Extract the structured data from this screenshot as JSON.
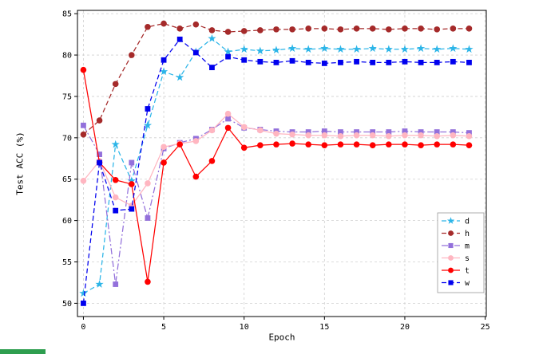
{
  "chart_data": {
    "type": "line",
    "title": "",
    "xlabel": "Epoch",
    "ylabel": "Test ACC (%)",
    "xlim": [
      -0.37,
      25.07
    ],
    "ylim": [
      48.4,
      85.4
    ],
    "xticks": [
      0,
      5,
      10,
      15,
      20,
      25
    ],
    "yticks": [
      50,
      55,
      60,
      65,
      70,
      75,
      80,
      85
    ],
    "grid": true,
    "legend_position": "lower right",
    "x": [
      0,
      1,
      2,
      3,
      4,
      5,
      6,
      7,
      8,
      9,
      10,
      11,
      12,
      13,
      14,
      15,
      16,
      17,
      18,
      19,
      20,
      21,
      22,
      23,
      24
    ],
    "series": [
      {
        "name": "d",
        "color": "#2cb5e8",
        "line": "dashed",
        "marker": "star",
        "values": [
          51.2,
          52.3,
          69.2,
          64.8,
          71.5,
          78.0,
          77.3,
          80.4,
          82.0,
          80.4,
          80.7,
          80.5,
          80.6,
          80.8,
          80.7,
          80.8,
          80.7,
          80.7,
          80.8,
          80.7,
          80.7,
          80.8,
          80.7,
          80.8,
          80.7
        ]
      },
      {
        "name": "h",
        "color": "#a52a2a",
        "line": "dashed",
        "marker": "circle",
        "values": [
          70.4,
          72.1,
          76.5,
          80.0,
          83.4,
          83.8,
          83.2,
          83.7,
          83.0,
          82.8,
          82.9,
          83.0,
          83.1,
          83.1,
          83.2,
          83.2,
          83.1,
          83.2,
          83.2,
          83.1,
          83.2,
          83.2,
          83.1,
          83.2,
          83.2
        ]
      },
      {
        "name": "m",
        "color": "#9370db",
        "line": "dashdot",
        "marker": "square",
        "values": [
          71.5,
          68.0,
          52.3,
          67.0,
          60.3,
          68.7,
          69.4,
          69.9,
          71.0,
          72.3,
          71.2,
          71.0,
          70.8,
          70.7,
          70.7,
          70.8,
          70.7,
          70.7,
          70.7,
          70.7,
          70.8,
          70.7,
          70.7,
          70.7,
          70.6
        ]
      },
      {
        "name": "s",
        "color": "#ffb6c1",
        "line": "solid",
        "marker": "circle",
        "values": [
          64.8,
          67.2,
          62.8,
          61.8,
          64.5,
          68.9,
          69.3,
          69.6,
          70.9,
          72.9,
          71.3,
          70.9,
          70.5,
          70.4,
          70.3,
          70.3,
          70.2,
          70.3,
          70.3,
          70.2,
          70.3,
          70.3,
          70.2,
          70.3,
          70.2
        ]
      },
      {
        "name": "t",
        "color": "#ff0000",
        "line": "solid",
        "marker": "circle",
        "values": [
          78.2,
          67.0,
          64.9,
          64.4,
          52.6,
          67.0,
          69.2,
          65.3,
          67.2,
          71.2,
          68.8,
          69.1,
          69.2,
          69.3,
          69.2,
          69.1,
          69.2,
          69.2,
          69.1,
          69.2,
          69.2,
          69.1,
          69.2,
          69.2,
          69.1
        ]
      },
      {
        "name": "w",
        "color": "#0000ee",
        "line": "dashed",
        "marker": "square",
        "values": [
          50.0,
          67.0,
          61.2,
          61.4,
          73.5,
          79.4,
          81.9,
          80.3,
          78.5,
          79.8,
          79.4,
          79.2,
          79.1,
          79.3,
          79.1,
          79.0,
          79.1,
          79.2,
          79.1,
          79.1,
          79.2,
          79.1,
          79.1,
          79.2,
          79.1
        ]
      }
    ],
    "grid_color": "#cfcfcf",
    "frame_color": "#000000",
    "legend_border_color": "#999999"
  },
  "decor": {
    "bottom_left_bar_color": "#2e9e4f"
  }
}
